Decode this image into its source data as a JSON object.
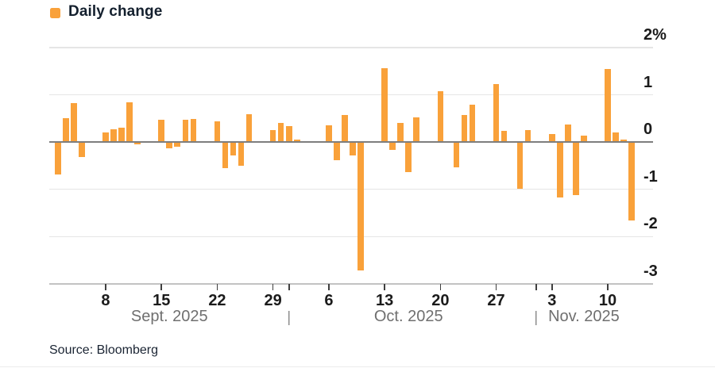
{
  "legend": {
    "label": "Daily change"
  },
  "source": "Source: Bloomberg",
  "chart_data": {
    "type": "bar",
    "title": "",
    "series_name": "Daily change",
    "unit": "%",
    "bar_color": "#f9a13a",
    "zero_line_color": "#7e7e7e",
    "grid_color": "#e5e5e5",
    "grid": "horizontal",
    "legend_position": "top-left",
    "ylim": [
      -3,
      2
    ],
    "y_ticks": [
      {
        "value": 2,
        "label": "2%"
      },
      {
        "value": 1,
        "label": "1"
      },
      {
        "value": 0,
        "label": "0"
      },
      {
        "value": -1,
        "label": "-1"
      },
      {
        "value": -2,
        "label": "-2"
      },
      {
        "value": -3,
        "label": "-3"
      }
    ],
    "x_start_date": "2025-09-02",
    "x_end_date": "2025-11-14",
    "week_ticks": [
      {
        "date": "2025-09-08",
        "label": "8"
      },
      {
        "date": "2025-09-15",
        "label": "15"
      },
      {
        "date": "2025-09-22",
        "label": "22"
      },
      {
        "date": "2025-09-29",
        "label": "29"
      },
      {
        "date": "2025-10-06",
        "label": "6"
      },
      {
        "date": "2025-10-13",
        "label": "13"
      },
      {
        "date": "2025-10-20",
        "label": "20"
      },
      {
        "date": "2025-10-27",
        "label": "27"
      },
      {
        "date": "2025-11-03",
        "label": "3"
      },
      {
        "date": "2025-11-10",
        "label": "10"
      }
    ],
    "month_separators": [
      "2025-10-01",
      "2025-11-01"
    ],
    "month_labels": [
      {
        "label": "Sept. 2025",
        "center_date": "2025-09-16"
      },
      {
        "label": "Oct. 2025",
        "center_date": "2025-10-16"
      },
      {
        "label": "Nov. 2025",
        "center_date": "2025-11-07"
      }
    ],
    "points": [
      {
        "date": "2025-09-02",
        "value": -0.69
      },
      {
        "date": "2025-09-03",
        "value": 0.51
      },
      {
        "date": "2025-09-04",
        "value": 0.83
      },
      {
        "date": "2025-09-05",
        "value": -0.32
      },
      {
        "date": "2025-09-08",
        "value": 0.21
      },
      {
        "date": "2025-09-09",
        "value": 0.27
      },
      {
        "date": "2025-09-10",
        "value": 0.3
      },
      {
        "date": "2025-09-11",
        "value": 0.85
      },
      {
        "date": "2025-09-12",
        "value": -0.05
      },
      {
        "date": "2025-09-15",
        "value": 0.47
      },
      {
        "date": "2025-09-16",
        "value": -0.13
      },
      {
        "date": "2025-09-17",
        "value": -0.1
      },
      {
        "date": "2025-09-18",
        "value": 0.48
      },
      {
        "date": "2025-09-19",
        "value": 0.49
      },
      {
        "date": "2025-09-22",
        "value": 0.44
      },
      {
        "date": "2025-09-23",
        "value": -0.55
      },
      {
        "date": "2025-09-24",
        "value": -0.28
      },
      {
        "date": "2025-09-25",
        "value": -0.5
      },
      {
        "date": "2025-09-26",
        "value": 0.59
      },
      {
        "date": "2025-09-29",
        "value": 0.26
      },
      {
        "date": "2025-09-30",
        "value": 0.41
      },
      {
        "date": "2025-10-01",
        "value": 0.34
      },
      {
        "date": "2025-10-02",
        "value": 0.06
      },
      {
        "date": "2025-10-03",
        "value": 0.01
      },
      {
        "date": "2025-10-06",
        "value": 0.36
      },
      {
        "date": "2025-10-07",
        "value": -0.38
      },
      {
        "date": "2025-10-08",
        "value": 0.58
      },
      {
        "date": "2025-10-09",
        "value": -0.28
      },
      {
        "date": "2025-10-10",
        "value": -2.71
      },
      {
        "date": "2025-10-13",
        "value": 1.56
      },
      {
        "date": "2025-10-14",
        "value": -0.16
      },
      {
        "date": "2025-10-15",
        "value": 0.4
      },
      {
        "date": "2025-10-16",
        "value": -0.63
      },
      {
        "date": "2025-10-17",
        "value": 0.53
      },
      {
        "date": "2025-10-20",
        "value": 1.07
      },
      {
        "date": "2025-10-21",
        "value": 0.0
      },
      {
        "date": "2025-10-22",
        "value": -0.53
      },
      {
        "date": "2025-10-23",
        "value": 0.58
      },
      {
        "date": "2025-10-24",
        "value": 0.79
      },
      {
        "date": "2025-10-27",
        "value": 1.23
      },
      {
        "date": "2025-10-28",
        "value": 0.23
      },
      {
        "date": "2025-10-29",
        "value": 0.0
      },
      {
        "date": "2025-10-30",
        "value": -0.99
      },
      {
        "date": "2025-10-31",
        "value": 0.26
      },
      {
        "date": "2025-11-03",
        "value": 0.17
      },
      {
        "date": "2025-11-04",
        "value": -1.17
      },
      {
        "date": "2025-11-05",
        "value": 0.37
      },
      {
        "date": "2025-11-06",
        "value": -1.12
      },
      {
        "date": "2025-11-07",
        "value": 0.13
      },
      {
        "date": "2025-11-10",
        "value": 1.54
      },
      {
        "date": "2025-11-11",
        "value": 0.21
      },
      {
        "date": "2025-11-12",
        "value": 0.06
      },
      {
        "date": "2025-11-13",
        "value": -1.66
      }
    ]
  }
}
